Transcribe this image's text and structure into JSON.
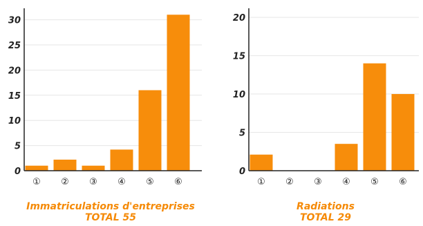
{
  "chart_data": [
    {
      "type": "bar",
      "categories": [
        "①",
        "②",
        "③",
        "④",
        "⑤",
        "⑥"
      ],
      "values": [
        1,
        2.2,
        1,
        4.2,
        16,
        31
      ],
      "ylim": [
        0,
        32
      ],
      "yticks": [
        0,
        5,
        10,
        15,
        20,
        25,
        30
      ],
      "title": "Immatriculations d'entreprises",
      "subtitle": "TOTAL 55",
      "grid": true
    },
    {
      "type": "bar",
      "categories": [
        "①",
        "②",
        "③",
        "④",
        "⑤",
        "⑥"
      ],
      "values": [
        2.1,
        0,
        0,
        3.5,
        14,
        10
      ],
      "ylim": [
        0,
        21
      ],
      "yticks": [
        0,
        5,
        10,
        15,
        20
      ],
      "title": "Radiations",
      "subtitle": "TOTAL 29",
      "grid": true
    }
  ],
  "colors": {
    "bar": "#f78d0b",
    "caption": "#f58a07",
    "axis": "#222222",
    "grid": "#e6e6e6"
  }
}
